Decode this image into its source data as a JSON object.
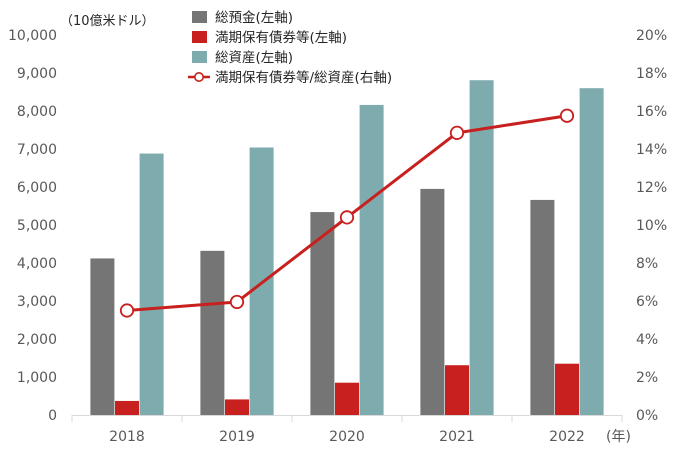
{
  "chart_data": {
    "type": "bar",
    "title": "",
    "categories": [
      "2018",
      "2019",
      "2020",
      "2021",
      "2022"
    ],
    "x_unit_label": "(年)",
    "y_left": {
      "unit_label": "（10億米ドル）",
      "lim": [
        0,
        10000
      ],
      "ticks": [
        0,
        1000,
        2000,
        3000,
        4000,
        5000,
        6000,
        7000,
        8000,
        9000,
        10000
      ],
      "tick_labels": [
        "0",
        "1,000",
        "2,000",
        "3,000",
        "4,000",
        "5,000",
        "6,000",
        "7,000",
        "8,000",
        "9,000",
        "10,000"
      ]
    },
    "y_right": {
      "lim": [
        0,
        20
      ],
      "ticks": [
        0,
        2,
        4,
        6,
        8,
        10,
        12,
        14,
        16,
        18,
        20
      ],
      "tick_labels": [
        "0%",
        "2%",
        "4%",
        "6%",
        "8%",
        "10%",
        "12%",
        "14%",
        "16%",
        "18%",
        "20%"
      ]
    },
    "series": [
      {
        "name": "総預金(左軸)",
        "kind": "bar",
        "axis": "left",
        "color": "#757575",
        "values": [
          4120,
          4320,
          5340,
          5950,
          5660
        ]
      },
      {
        "name": "満期保有債券等(左軸)",
        "kind": "bar",
        "axis": "left",
        "color": "#c8201e",
        "values": [
          370,
          410,
          850,
          1310,
          1350
        ]
      },
      {
        "name": "総資産(左軸)",
        "kind": "bar",
        "axis": "left",
        "color": "#7eabae",
        "values": [
          6880,
          7040,
          8160,
          8810,
          8600
        ]
      },
      {
        "name": "満期保有債券等/総資産(右軸)",
        "kind": "line",
        "axis": "right",
        "color": "#c8201e",
        "values": [
          5.5,
          5.95,
          10.4,
          14.85,
          15.75
        ]
      }
    ],
    "legend_position": "top-center"
  }
}
